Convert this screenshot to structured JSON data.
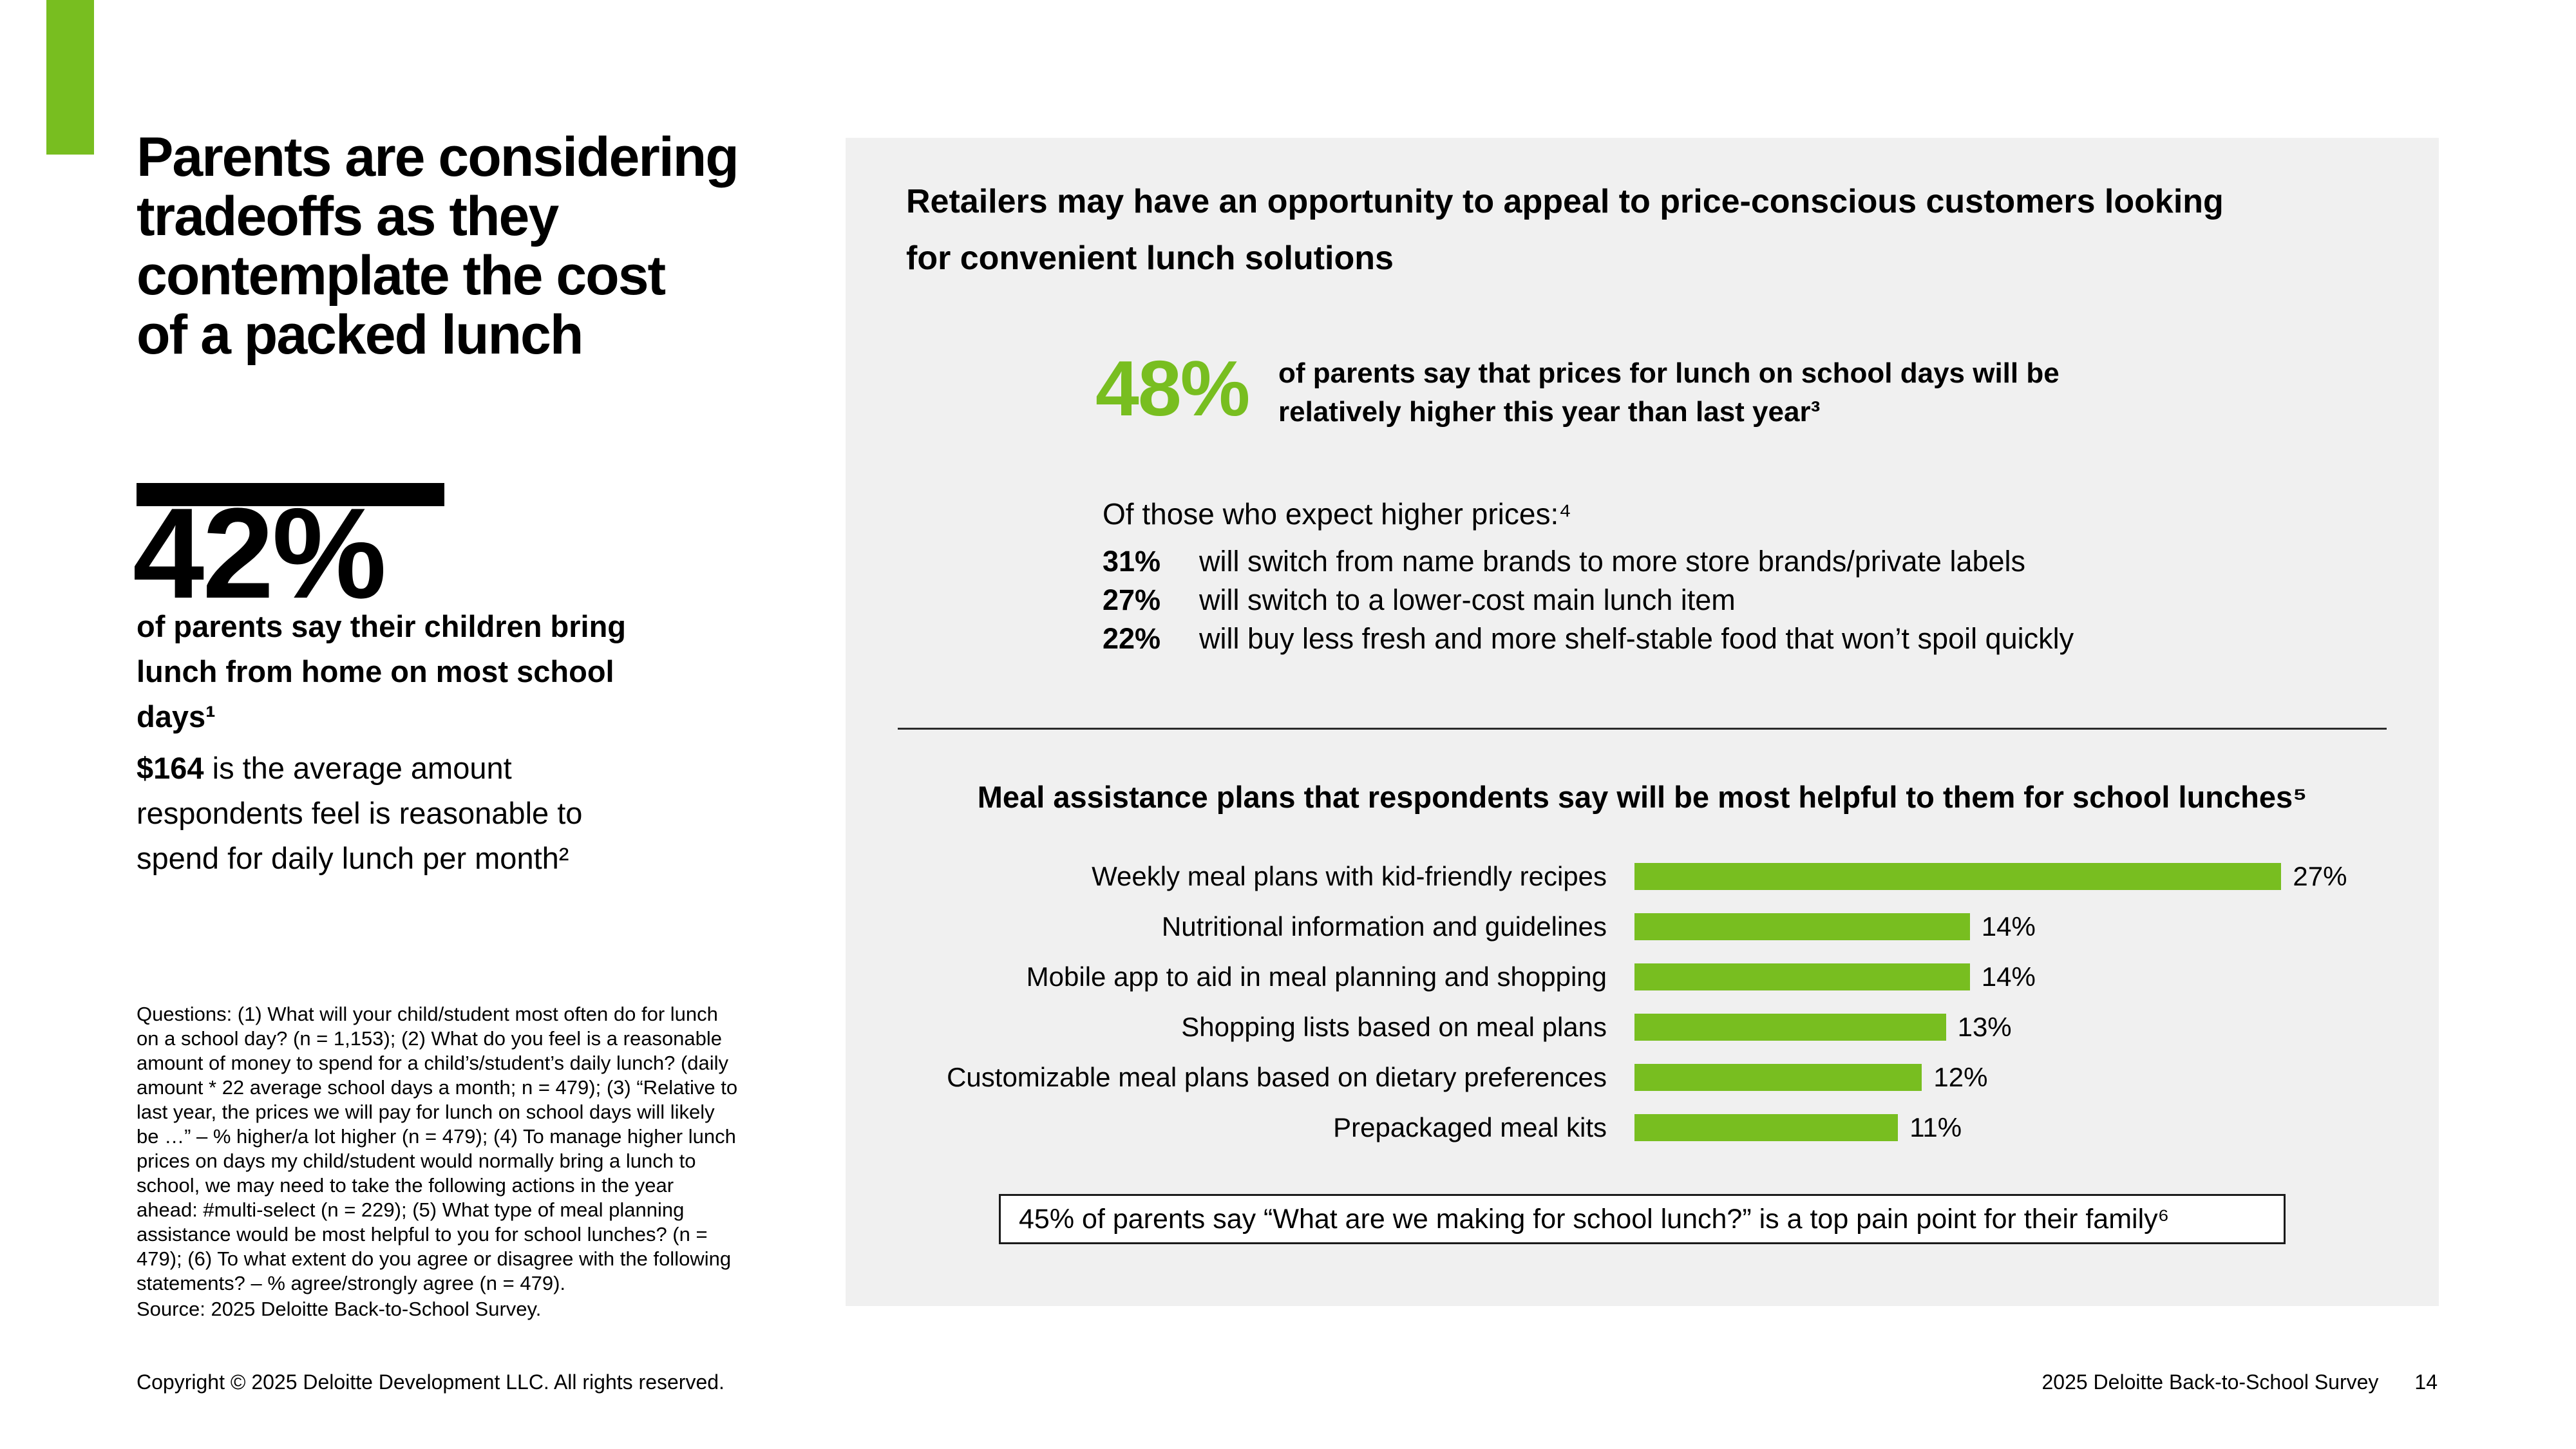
{
  "colors": {
    "accent_green": "#78BE20",
    "panel_bg": "#F0F0F0",
    "text": "#000000"
  },
  "left": {
    "title": "Parents are considering\ntradeoffs as they\ncontemplate the cost\nof a packed lunch",
    "stat": {
      "value": "42%",
      "desc": "of parents say their children bring\nlunch from home on most school\ndays¹"
    },
    "amount": {
      "bold": "$164",
      "rest": " is the average amount\nrespondents feel is reasonable to\nspend for daily lunch per month²"
    },
    "footnote": "Questions: (1) What will your child/student most often do for lunch\non a school day? (n = 1,153); (2) What do you feel is a reasonable\namount of money to spend for a child’s/student’s daily lunch? (daily\namount * 22 average school days a month; n = 479); (3) “Relative to\nlast year, the prices we will pay for lunch on school days will likely\nbe …” – % higher/a lot higher (n = 479); (4) To manage higher lunch\nprices on days my child/student would normally bring a lunch to\nschool, we may need to take the following actions in the year\nahead: #multi-select (n = 229); (5) What type of meal planning\nassistance would be most helpful to you for school lunches? (n =\n479); (6) To what extent do you agree or disagree with the following\nstatements? – % agree/strongly agree (n = 479).",
    "source": "Source: 2025 Deloitte Back-to-School Survey."
  },
  "panel": {
    "heading": "Retailers may have an opportunity to appeal to price-conscious customers looking\nfor convenient lunch solutions",
    "stat48": {
      "value": "48%",
      "text": "of parents say that prices for lunch on school days will be\nrelatively higher this year than last year³"
    },
    "expect": {
      "intro": "Of those who expect higher prices:⁴",
      "items": [
        {
          "pct": "31%",
          "text": "will switch from name brands to more store brands/private labels"
        },
        {
          "pct": "27%",
          "text": "will switch to a lower-cost main lunch item"
        },
        {
          "pct": "22%",
          "text": "will buy less fresh and more shelf-stable food that won’t spoil quickly"
        }
      ]
    },
    "callout": "45% of parents say “What are we making for school lunch?” is a top pain point for their family⁶"
  },
  "chart_data": {
    "type": "bar",
    "orientation": "horizontal",
    "title": "Meal assistance plans that respondents say will be most helpful to them for school lunches⁵",
    "categories": [
      "Weekly meal plans with kid-friendly recipes",
      "Nutritional information and guidelines",
      "Mobile app to aid in meal planning and shopping",
      "Shopping lists based on meal plans",
      "Customizable meal plans based on dietary preferences",
      "Prepackaged meal kits"
    ],
    "values": [
      27,
      14,
      14,
      13,
      12,
      11
    ],
    "unit": "%",
    "xlim": [
      0,
      30
    ],
    "grid": false,
    "legend": "none",
    "bar_color": "#78BE20",
    "value_label_position": "outside-end"
  },
  "footer": {
    "copyright": "Copyright © 2025 Deloitte Development LLC. All rights reserved.",
    "survey": "2025 Deloitte Back-to-School Survey",
    "page": "14"
  }
}
